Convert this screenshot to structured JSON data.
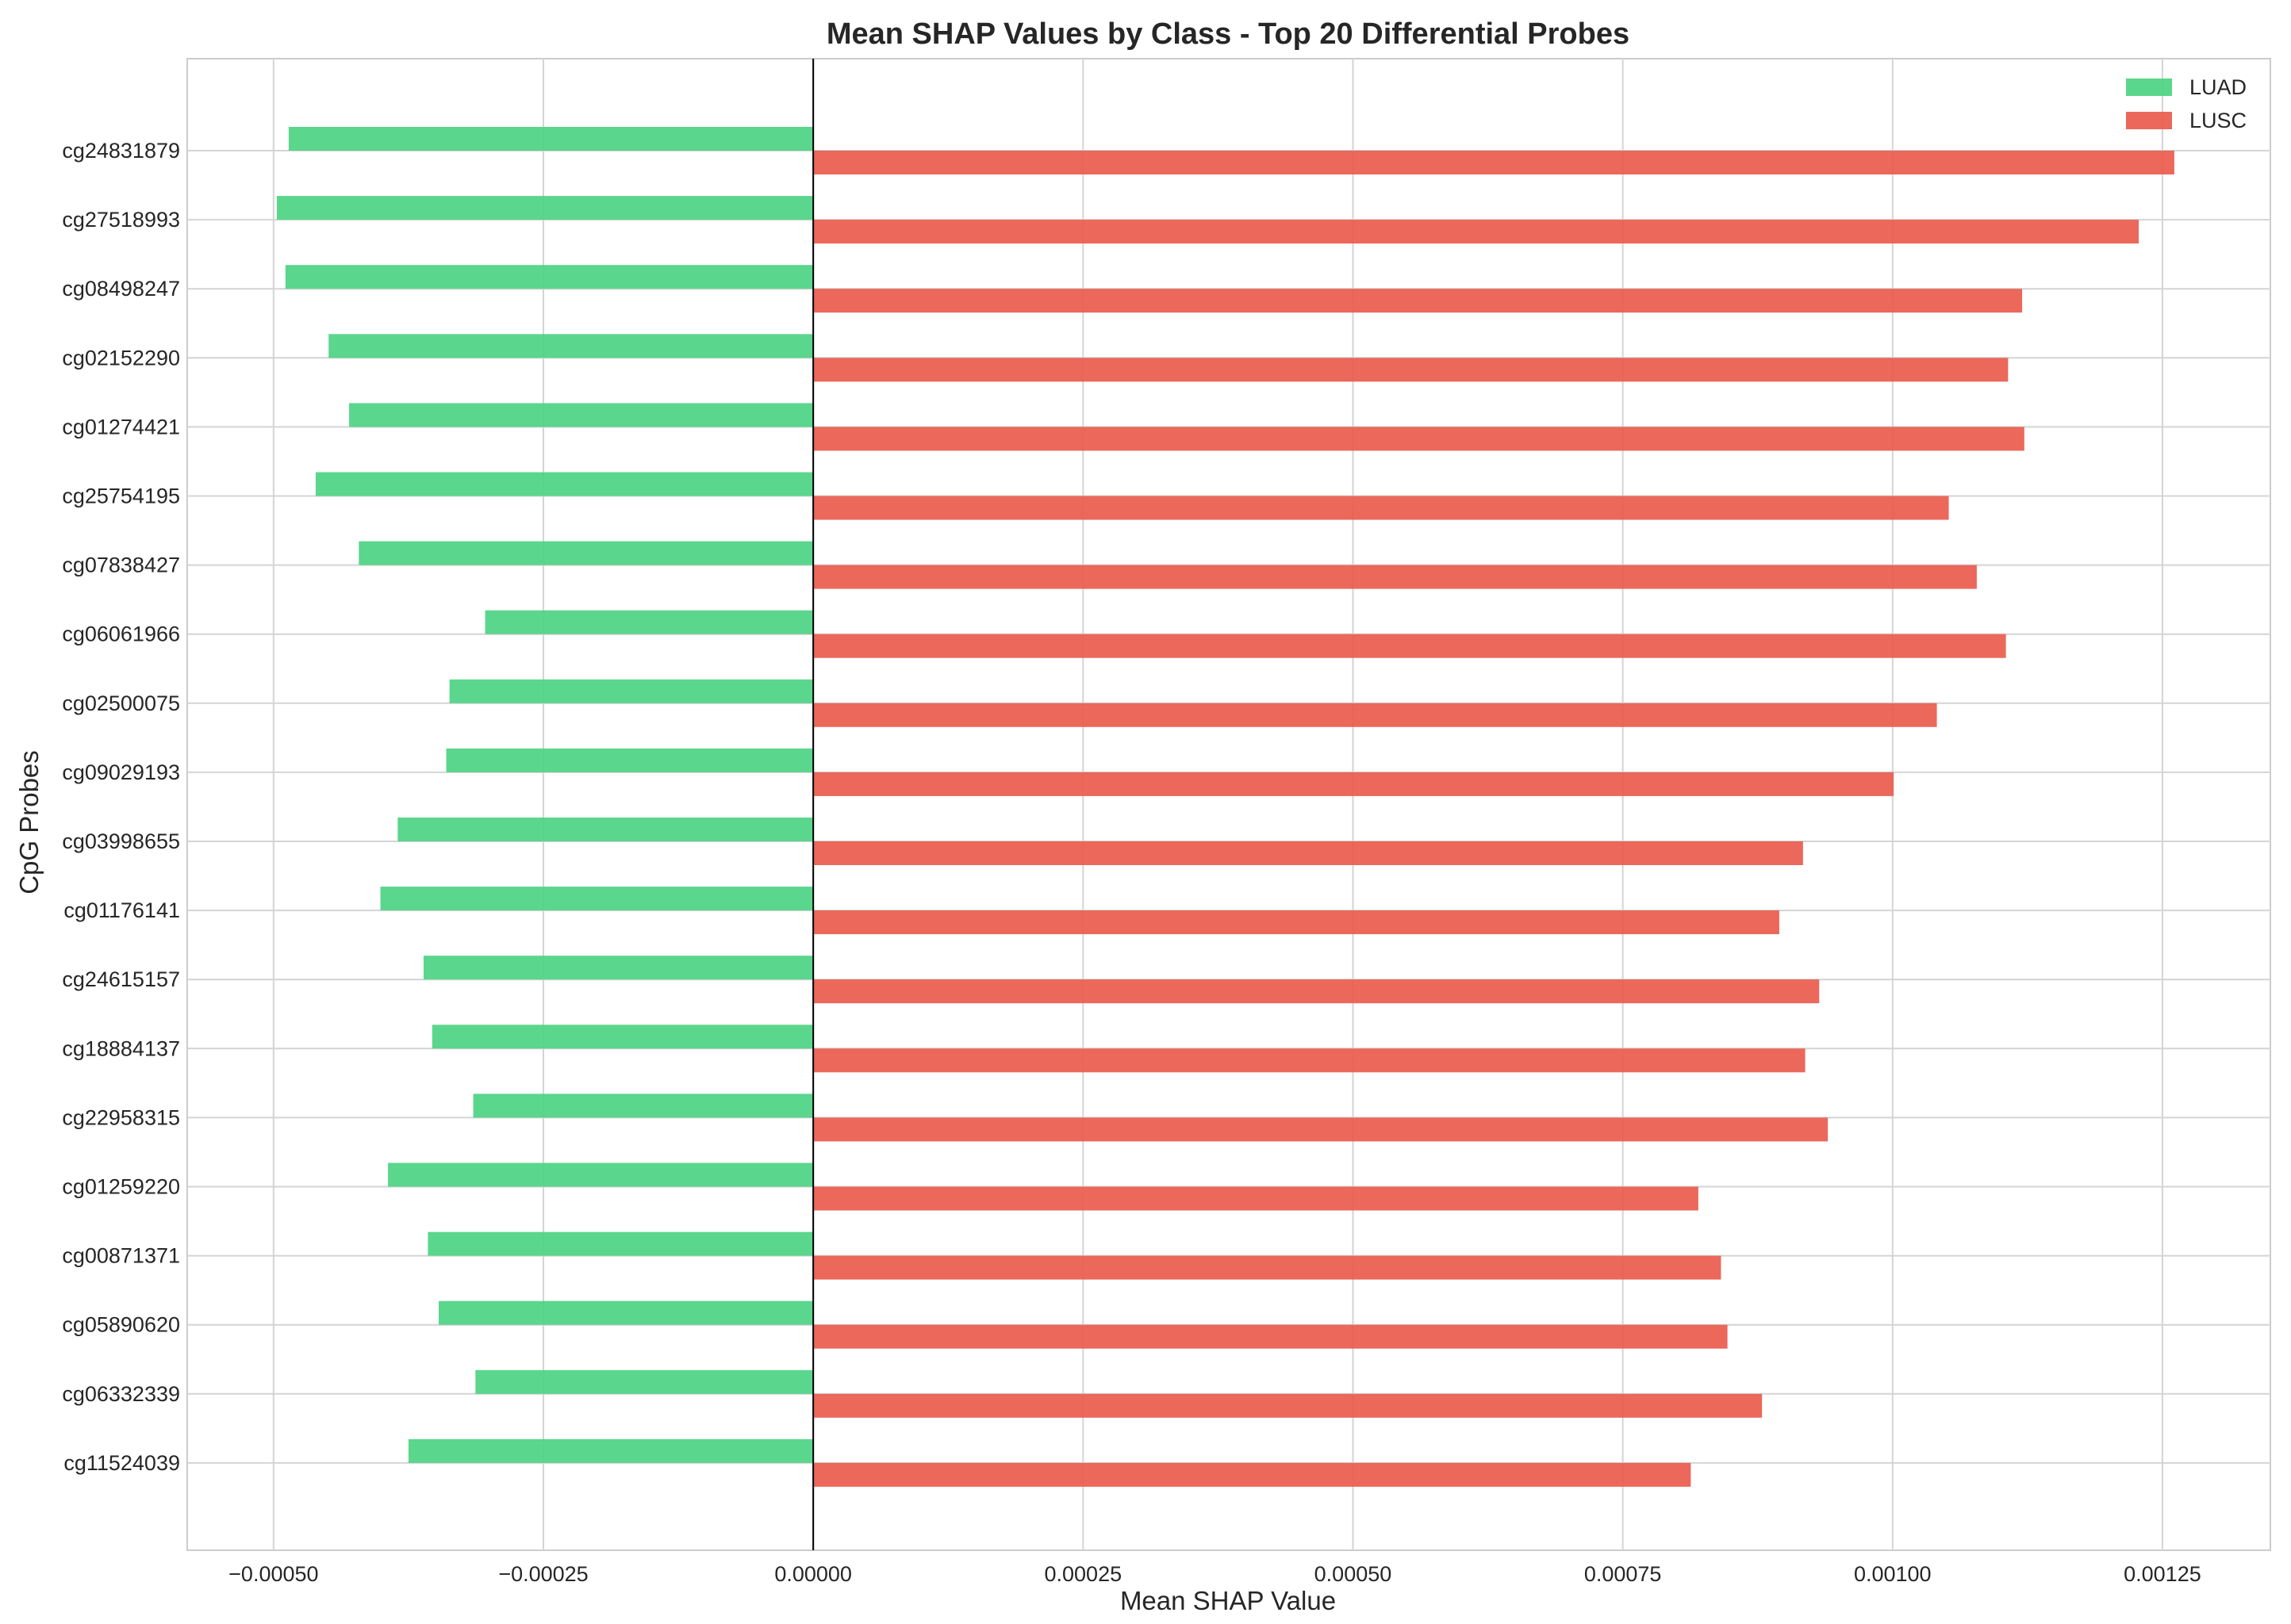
{
  "chart_data": {
    "type": "bar",
    "orientation": "horizontal",
    "title": "Mean SHAP Values by Class - Top 20 Differential Probes",
    "xlabel": "Mean SHAP Value",
    "ylabel": "CpG Probes",
    "xlim": [
      -0.00058,
      0.00135
    ],
    "xticks": [
      -0.0005,
      -0.00025,
      0.0,
      0.00025,
      0.0005,
      0.00075,
      0.001,
      0.00125
    ],
    "xtick_labels": [
      "−0.00050",
      "−0.00025",
      "0.00000",
      "0.00025",
      "0.00050",
      "0.00075",
      "0.00100",
      "0.00125"
    ],
    "grid": true,
    "legend_position": "top-right",
    "categories": [
      "cg24831879",
      "cg27518993",
      "cg08498247",
      "cg02152290",
      "cg01274421",
      "cg25754195",
      "cg07838427",
      "cg06061966",
      "cg02500075",
      "cg09029193",
      "cg03998655",
      "cg01176141",
      "cg24615157",
      "cg18884137",
      "cg22958315",
      "cg01259220",
      "cg00871371",
      "cg05890620",
      "cg06332339",
      "cg11524039"
    ],
    "series": [
      {
        "name": "LUAD",
        "color": "#4dd383",
        "values": [
          -0.000486,
          -0.000497,
          -0.000489,
          -0.000449,
          -0.00043,
          -0.000461,
          -0.000421,
          -0.000304,
          -0.000337,
          -0.00034,
          -0.000385,
          -0.000401,
          -0.000361,
          -0.000353,
          -0.000315,
          -0.000394,
          -0.000357,
          -0.000347,
          -0.000313,
          -0.000375
        ]
      },
      {
        "name": "LUSC",
        "color": "#e95b4d",
        "values": [
          0.001261,
          0.001228,
          0.00112,
          0.001107,
          0.001122,
          0.001052,
          0.001078,
          0.001105,
          0.001041,
          0.001001,
          0.000917,
          0.000895,
          0.000932,
          0.000919,
          0.00094,
          0.00082,
          0.000841,
          0.000847,
          0.000879,
          0.000813
        ]
      }
    ]
  }
}
